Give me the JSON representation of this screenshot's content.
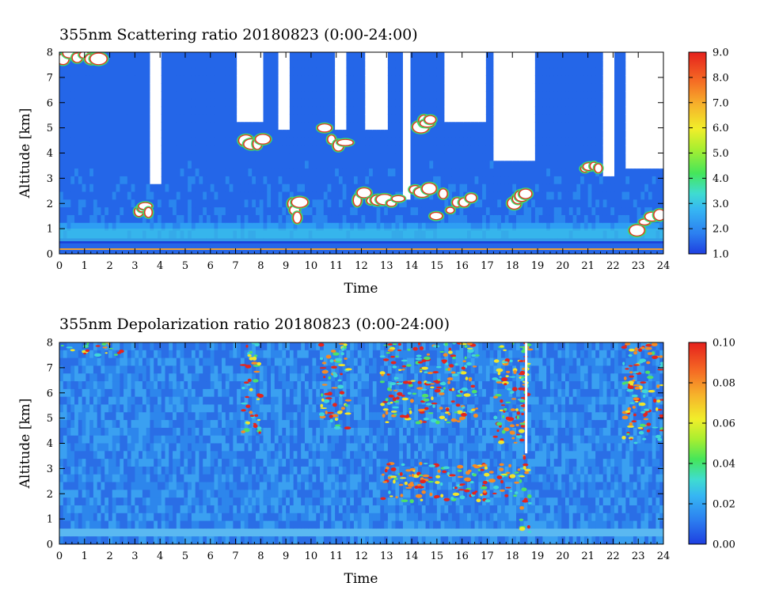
{
  "chart_data": [
    {
      "type": "heatmap",
      "title": "355nm Scattering ratio  20180823 (0:00-24:00)",
      "xlabel": "Time",
      "ylabel": "Altitude [km]",
      "xlim": [
        0,
        24
      ],
      "ylim": [
        0,
        8
      ],
      "x_ticks": [
        "0",
        "1",
        "2",
        "3",
        "4",
        "5",
        "6",
        "7",
        "8",
        "9",
        "10",
        "11",
        "12",
        "13",
        "14",
        "15",
        "16",
        "17",
        "18",
        "19",
        "20",
        "21",
        "22",
        "23",
        "24"
      ],
      "y_ticks": [
        "0",
        "1",
        "2",
        "3",
        "4",
        "5",
        "6",
        "7",
        "8"
      ],
      "colorbar": {
        "range": [
          1.0,
          9.0
        ],
        "ticks": [
          "1.0",
          "2.0",
          "3.0",
          "4.0",
          "5.0",
          "6.0",
          "7.0",
          "8.0",
          "9.0"
        ]
      },
      "features": {
        "cloud_free_gaps_hours": [
          [
            3.6,
            4.0
          ],
          [
            7.0,
            8.1
          ],
          [
            8.7,
            9.1
          ],
          [
            10.9,
            11.4
          ],
          [
            12.2,
            13.0
          ],
          [
            13.6,
            14.0
          ],
          [
            15.3,
            17.0
          ],
          [
            17.3,
            18.9
          ],
          [
            21.6,
            22.1
          ],
          [
            22.5,
            24.0
          ]
        ],
        "boundary_layer_top_km": 0.5,
        "high_ratio_clouds": [
          {
            "time": [
              0.0,
              1.7
            ],
            "alt_km": [
              7.7,
              8.0
            ]
          },
          {
            "time": [
              3.1,
              3.6
            ],
            "alt_km": [
              1.6,
              2.0
            ]
          },
          {
            "time": [
              7.3,
              8.2
            ],
            "alt_km": [
              4.3,
              4.6
            ]
          },
          {
            "time": [
              9.2,
              9.6
            ],
            "alt_km": [
              1.4,
              2.1
            ]
          },
          {
            "time": [
              10.4,
              11.5
            ],
            "alt_km": [
              4.0,
              5.0
            ]
          },
          {
            "time": [
              11.7,
              13.6
            ],
            "alt_km": [
              1.5,
              2.6
            ]
          },
          {
            "time": [
              14.3,
              14.8
            ],
            "alt_km": [
              5.0,
              5.4
            ]
          },
          {
            "time": [
              14.0,
              16.5
            ],
            "alt_km": [
              1.5,
              2.6
            ]
          },
          {
            "time": [
              18.0,
              18.6
            ],
            "alt_km": [
              1.5,
              2.5
            ]
          },
          {
            "time": [
              20.8,
              21.5
            ],
            "alt_km": [
              3.0,
              3.6
            ]
          },
          {
            "time": [
              22.8,
              24.0
            ],
            "alt_km": [
              0.8,
              1.6
            ]
          }
        ]
      }
    },
    {
      "type": "heatmap",
      "title": "355nm Depolarization ratio  20180823 (0:00-24:00)",
      "xlabel": "Time",
      "ylabel": "Altitude [km]",
      "xlim": [
        0,
        24
      ],
      "ylim": [
        0,
        8
      ],
      "x_ticks": [
        "0",
        "1",
        "2",
        "3",
        "4",
        "5",
        "6",
        "7",
        "8",
        "9",
        "10",
        "11",
        "12",
        "13",
        "14",
        "15",
        "16",
        "17",
        "18",
        "19",
        "20",
        "21",
        "22",
        "23",
        "24"
      ],
      "y_ticks": [
        "0",
        "1",
        "2",
        "3",
        "4",
        "5",
        "6",
        "7",
        "8"
      ],
      "colorbar": {
        "range": [
          0.0,
          0.1
        ],
        "ticks": [
          "0.00",
          "0.02",
          "0.04",
          "0.06",
          "0.08",
          "0.10"
        ]
      },
      "features": {
        "high_depol_layers": [
          {
            "time": [
              0.0,
              2.5
            ],
            "alt_km": [
              7.5,
              8.0
            ]
          },
          {
            "time": [
              7.3,
              8.0
            ],
            "alt_km": [
              4.4,
              8.0
            ]
          },
          {
            "time": [
              10.4,
              11.5
            ],
            "alt_km": [
              4.5,
              8.0
            ]
          },
          {
            "time": [
              12.8,
              16.6
            ],
            "alt_km": [
              4.8,
              8.0
            ]
          },
          {
            "time": [
              17.3,
              18.5
            ],
            "alt_km": [
              4.0,
              8.0
            ]
          },
          {
            "time": [
              18.3,
              18.7
            ],
            "alt_km": [
              0.3,
              8.0
            ]
          },
          {
            "time": [
              22.4,
              24.0
            ],
            "alt_km": [
              4.0,
              8.0
            ]
          },
          {
            "time": [
              12.8,
              18.5
            ],
            "alt_km": [
              1.7,
              3.2
            ]
          }
        ]
      }
    }
  ]
}
